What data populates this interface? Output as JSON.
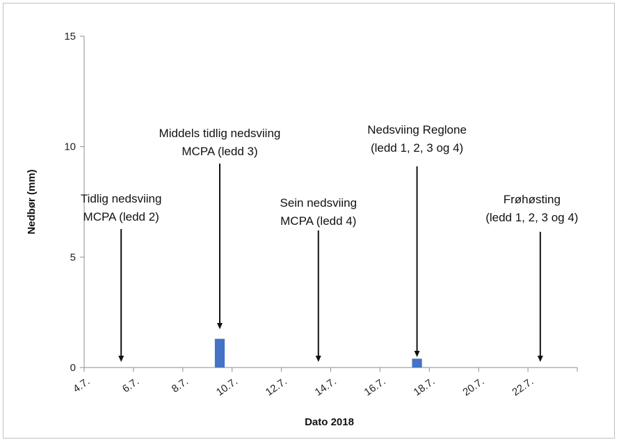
{
  "chart_data": {
    "type": "bar",
    "title": "",
    "xlabel": "Dato 2018",
    "ylabel": "Nedbør (mm)",
    "ylim": [
      0,
      15
    ],
    "yticks": [
      0,
      5,
      10,
      15
    ],
    "x_range": [
      "4.7.",
      "24.7."
    ],
    "xticks": [
      "4.7.",
      "6.7.",
      "8.7.",
      "10.7.",
      "12.7.",
      "14.7.",
      "16.7.",
      "18.7.",
      "20.7.",
      "22.7."
    ],
    "series": [
      {
        "color": "#4472c4",
        "points": [
          {
            "x": "9.7.",
            "y": 1.3
          },
          {
            "x": "17.7.",
            "y": 0.4
          }
        ]
      }
    ],
    "annotations": [
      {
        "lines": [
          "Tidlig nedsviing",
          "MCPA (ledd 2)"
        ],
        "x": "5.7."
      },
      {
        "lines": [
          "Middels tidlig nedsviing",
          "MCPA (ledd 3)"
        ],
        "x": "9.7."
      },
      {
        "lines": [
          "Sein nedsviing",
          "MCPA (ledd 4)"
        ],
        "x": "13.7."
      },
      {
        "lines": [
          "Nedsviing Reglone",
          "(ledd 1, 2, 3 og 4)"
        ],
        "x": "17.7."
      },
      {
        "lines": [
          "Frøhøsting",
          "(ledd 1, 2, 3 og 4)"
        ],
        "x": "22.7."
      }
    ],
    "grid": false,
    "legend": "none"
  }
}
